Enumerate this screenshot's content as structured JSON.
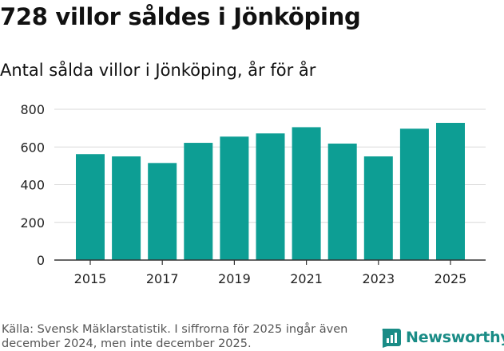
{
  "header": {
    "title": "728 villor såldes i Jönköping",
    "subtitle": "Antal sålda villor i Jönköping, år för år"
  },
  "footer": {
    "source": "Källa: Svensk Mäklarstatistik. I siffrorna för 2025 ingår även december 2024, men inte december 2025.",
    "brand": "Newsworthy",
    "brand_icon": "newsworthy-logo-icon"
  },
  "colors": {
    "bar": "#0d9e94",
    "grid": "#d9d9d9",
    "axis": "#333333",
    "brand": "#1a8c86"
  },
  "chart_data": {
    "type": "bar",
    "title": "Antal sålda villor i Jönköping, år för år",
    "categories": [
      "2015",
      "2016",
      "2017",
      "2018",
      "2019",
      "2020",
      "2021",
      "2022",
      "2023",
      "2024",
      "2025"
    ],
    "values": [
      562,
      550,
      515,
      622,
      655,
      672,
      705,
      618,
      550,
      697,
      728
    ],
    "x_tick_labels": [
      "2015",
      "",
      "2017",
      "",
      "2019",
      "",
      "2021",
      "",
      "2023",
      "",
      "2025"
    ],
    "y_ticks": [
      0,
      200,
      400,
      600,
      800
    ],
    "ylim": [
      0,
      800
    ],
    "xlabel": "",
    "ylabel": "",
    "grid": true
  }
}
